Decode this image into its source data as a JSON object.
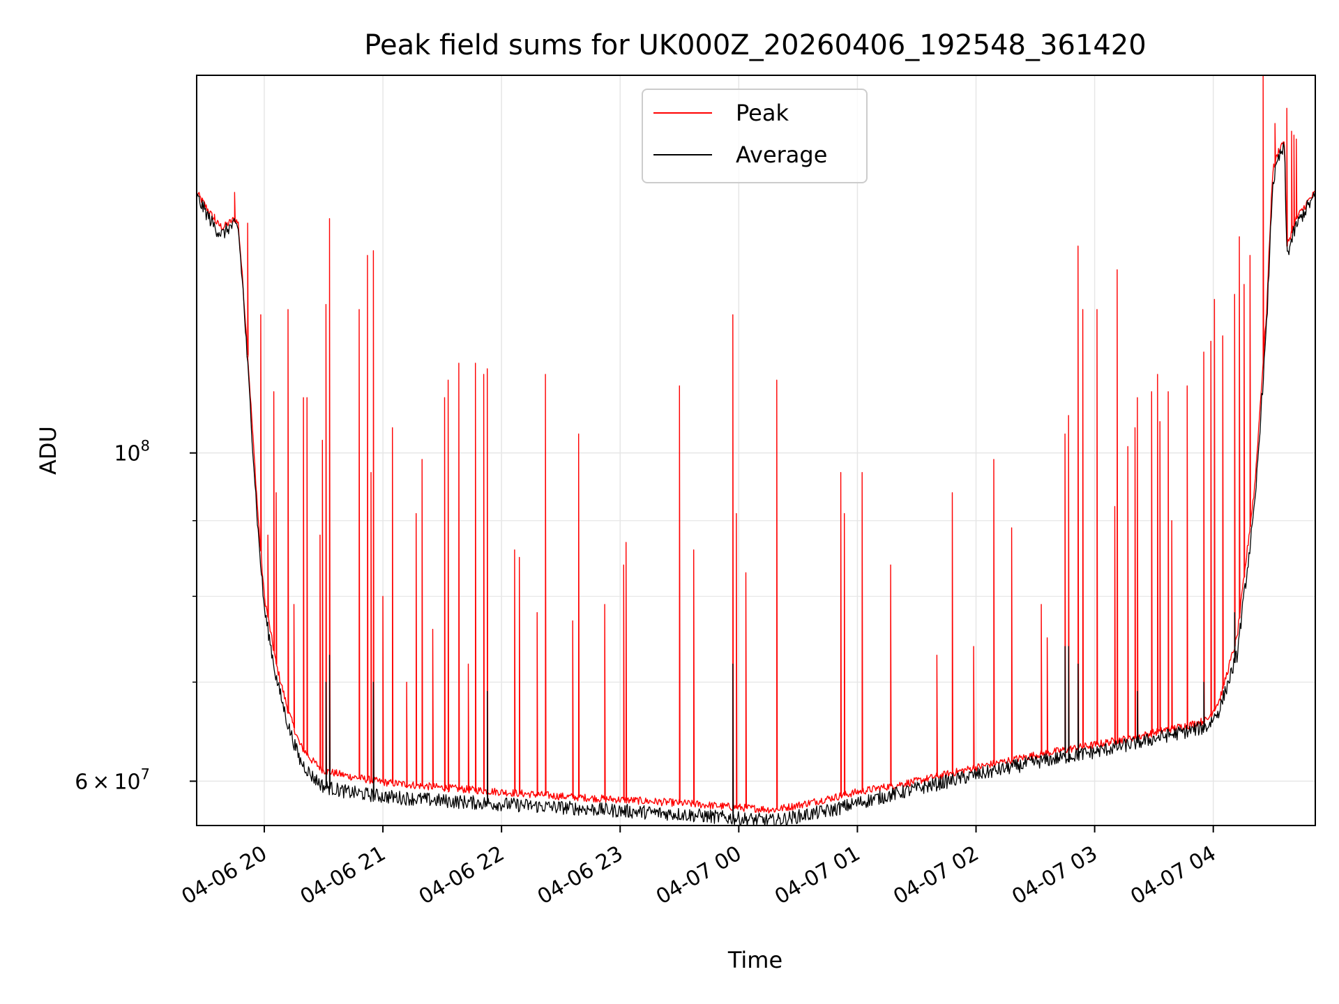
{
  "chart_data": {
    "type": "line",
    "title": "Peak field sums for UK000Z_20260406_192548_361420",
    "xlabel": "Time",
    "ylabel": "ADU",
    "yscale": "log",
    "ylim": [
      56000000,
      180000000
    ],
    "xlim_hours_since_2026_04_06_00": [
      19.43,
      28.86
    ],
    "x_ticks": [
      {
        "label": "04-06 20",
        "hour": 20
      },
      {
        "label": "04-06 21",
        "hour": 21
      },
      {
        "label": "04-06 22",
        "hour": 22
      },
      {
        "label": "04-06 23",
        "hour": 23
      },
      {
        "label": "04-07 00",
        "hour": 24
      },
      {
        "label": "04-07 01",
        "hour": 25
      },
      {
        "label": "04-07 02",
        "hour": 26
      },
      {
        "label": "04-07 03",
        "hour": 27
      },
      {
        "label": "04-07 04",
        "hour": 28
      }
    ],
    "y_ticks": [
      {
        "base": "10",
        "exp": "8",
        "value": 100000000
      },
      {
        "mantissa": "6",
        "times": "×",
        "base": "10",
        "exp": "7",
        "value": 60000000
      }
    ],
    "y_minor_ticks": [
      70000000,
      80000000,
      90000000
    ],
    "grid": true,
    "legend_position": "upper center",
    "series": [
      {
        "name": "Peak",
        "color": "#ff0000",
        "baseline": {
          "hours": [
            19.43,
            19.55,
            19.6,
            19.65,
            19.7,
            19.75,
            19.78,
            19.82,
            19.85,
            19.88,
            19.95,
            20.0,
            20.1,
            20.2,
            20.3,
            20.4,
            20.5,
            20.7,
            21.0,
            21.5,
            22.0,
            22.5,
            23.0,
            23.5,
            24.0,
            24.3,
            24.5,
            24.8,
            25.0,
            25.5,
            26.0,
            26.5,
            27.0,
            27.4,
            27.6,
            27.8,
            27.95,
            28.05,
            28.2,
            28.35,
            28.45,
            28.5,
            28.55,
            28.6,
            28.62,
            28.7,
            28.8,
            28.86
          ],
          "values": [
            150000000,
            145000000,
            143000000,
            142000000,
            143000000,
            144000000,
            143000000,
            130000000,
            120000000,
            110000000,
            90000000,
            80000000,
            72000000,
            67000000,
            63500000,
            62000000,
            61000000,
            60500000,
            59900000,
            59400000,
            59000000,
            58600000,
            58300000,
            58000000,
            57600000,
            57400000,
            57800000,
            58500000,
            59000000,
            60000000,
            61300000,
            62500000,
            63500000,
            64400000,
            65000000,
            65500000,
            66000000,
            68000000,
            75000000,
            95000000,
            125000000,
            155000000,
            160000000,
            163000000,
            138000000,
            144000000,
            148000000,
            150000000
          ]
        },
        "spikes": [
          [
            19.58,
            145000000
          ],
          [
            19.75,
            150000000
          ],
          [
            19.86,
            143000000
          ],
          [
            19.97,
            124000000
          ],
          [
            20.03,
            88000000
          ],
          [
            20.08,
            110000000
          ],
          [
            20.1,
            94000000
          ],
          [
            20.2,
            125000000
          ],
          [
            20.25,
            79000000
          ],
          [
            20.33,
            109000000
          ],
          [
            20.36,
            109000000
          ],
          [
            20.47,
            88000000
          ],
          [
            20.49,
            102000000
          ],
          [
            20.52,
            126000000
          ],
          [
            20.55,
            144000000
          ],
          [
            20.8,
            125000000
          ],
          [
            20.87,
            136000000
          ],
          [
            20.9,
            97000000
          ],
          [
            20.92,
            137000000
          ],
          [
            21.0,
            80000000
          ],
          [
            21.08,
            104000000
          ],
          [
            21.2,
            70000000
          ],
          [
            21.28,
            91000000
          ],
          [
            21.33,
            99000000
          ],
          [
            21.42,
            76000000
          ],
          [
            21.52,
            109000000
          ],
          [
            21.55,
            112000000
          ],
          [
            21.64,
            115000000
          ],
          [
            21.72,
            72000000
          ],
          [
            21.78,
            115000000
          ],
          [
            21.85,
            113000000
          ],
          [
            21.88,
            114000000
          ],
          [
            22.11,
            86000000
          ],
          [
            22.15,
            85000000
          ],
          [
            22.3,
            78000000
          ],
          [
            22.37,
            113000000
          ],
          [
            22.6,
            77000000
          ],
          [
            22.65,
            103000000
          ],
          [
            22.87,
            79000000
          ],
          [
            23.03,
            84000000
          ],
          [
            23.05,
            87000000
          ],
          [
            23.5,
            111000000
          ],
          [
            23.62,
            86000000
          ],
          [
            23.95,
            124000000
          ],
          [
            23.98,
            91000000
          ],
          [
            24.06,
            83000000
          ],
          [
            24.32,
            112000000
          ],
          [
            24.86,
            97000000
          ],
          [
            24.89,
            91000000
          ],
          [
            25.04,
            97000000
          ],
          [
            25.28,
            84000000
          ],
          [
            25.67,
            73000000
          ],
          [
            25.8,
            94000000
          ],
          [
            25.98,
            74000000
          ],
          [
            26.15,
            99000000
          ],
          [
            26.3,
            89000000
          ],
          [
            26.55,
            79000000
          ],
          [
            26.6,
            75000000
          ],
          [
            26.75,
            103000000
          ],
          [
            26.78,
            106000000
          ],
          [
            26.86,
            138000000
          ],
          [
            26.9,
            125000000
          ],
          [
            27.02,
            125000000
          ],
          [
            27.17,
            92000000
          ],
          [
            27.19,
            133000000
          ],
          [
            27.28,
            101000000
          ],
          [
            27.34,
            104000000
          ],
          [
            27.36,
            109000000
          ],
          [
            27.48,
            110000000
          ],
          [
            27.53,
            113000000
          ],
          [
            27.55,
            105000000
          ],
          [
            27.62,
            110000000
          ],
          [
            27.65,
            90000000
          ],
          [
            27.78,
            111000000
          ],
          [
            27.92,
            117000000
          ],
          [
            27.98,
            119000000
          ],
          [
            28.01,
            127000000
          ],
          [
            28.08,
            120000000
          ],
          [
            28.18,
            128000000
          ],
          [
            28.22,
            140000000
          ],
          [
            28.26,
            130000000
          ],
          [
            28.31,
            136000000
          ],
          [
            28.42,
            180000000
          ],
          [
            28.52,
            167000000
          ],
          [
            28.62,
            171000000
          ],
          [
            28.66,
            165000000
          ],
          [
            28.68,
            164000000
          ],
          [
            28.7,
            163000000
          ]
        ]
      },
      {
        "name": "Average",
        "color": "#000000",
        "baseline": {
          "hours": [
            19.43,
            19.55,
            19.6,
            19.65,
            19.7,
            19.75,
            19.78,
            19.82,
            19.85,
            19.88,
            19.95,
            20.0,
            20.1,
            20.2,
            20.3,
            20.4,
            20.5,
            20.7,
            21.0,
            21.5,
            22.0,
            22.5,
            23.0,
            23.5,
            24.0,
            24.3,
            24.5,
            24.8,
            25.0,
            25.5,
            26.0,
            26.5,
            27.0,
            27.4,
            27.6,
            27.8,
            27.95,
            28.05,
            28.2,
            28.35,
            28.45,
            28.5,
            28.55,
            28.6,
            28.62,
            28.7,
            28.8,
            28.86
          ],
          "values": [
            149000000,
            143500000,
            141500000,
            140500000,
            142000000,
            142500000,
            142000000,
            129000000,
            118000000,
            108000000,
            88000000,
            78500000,
            70500000,
            65500000,
            62000000,
            60500000,
            59500000,
            59000000,
            58600000,
            58200000,
            57900000,
            57600000,
            57300000,
            57000000,
            56600000,
            56400000,
            56800000,
            57400000,
            58000000,
            59300000,
            60600000,
            61800000,
            62800000,
            63800000,
            64400000,
            64900000,
            65300000,
            67000000,
            73000000,
            92000000,
            122000000,
            152000000,
            158000000,
            161000000,
            136000000,
            142500000,
            147000000,
            149000000
          ]
        },
        "spikes": [
          [
            20.52,
            70000000
          ],
          [
            20.55,
            73000000
          ],
          [
            20.92,
            70000000
          ],
          [
            21.88,
            69000000
          ],
          [
            23.95,
            72000000
          ],
          [
            26.75,
            74000000
          ],
          [
            26.78,
            74000000
          ],
          [
            26.86,
            72000000
          ],
          [
            27.36,
            69000000
          ],
          [
            27.92,
            70000000
          ],
          [
            28.18,
            78000000
          ]
        ]
      }
    ]
  }
}
